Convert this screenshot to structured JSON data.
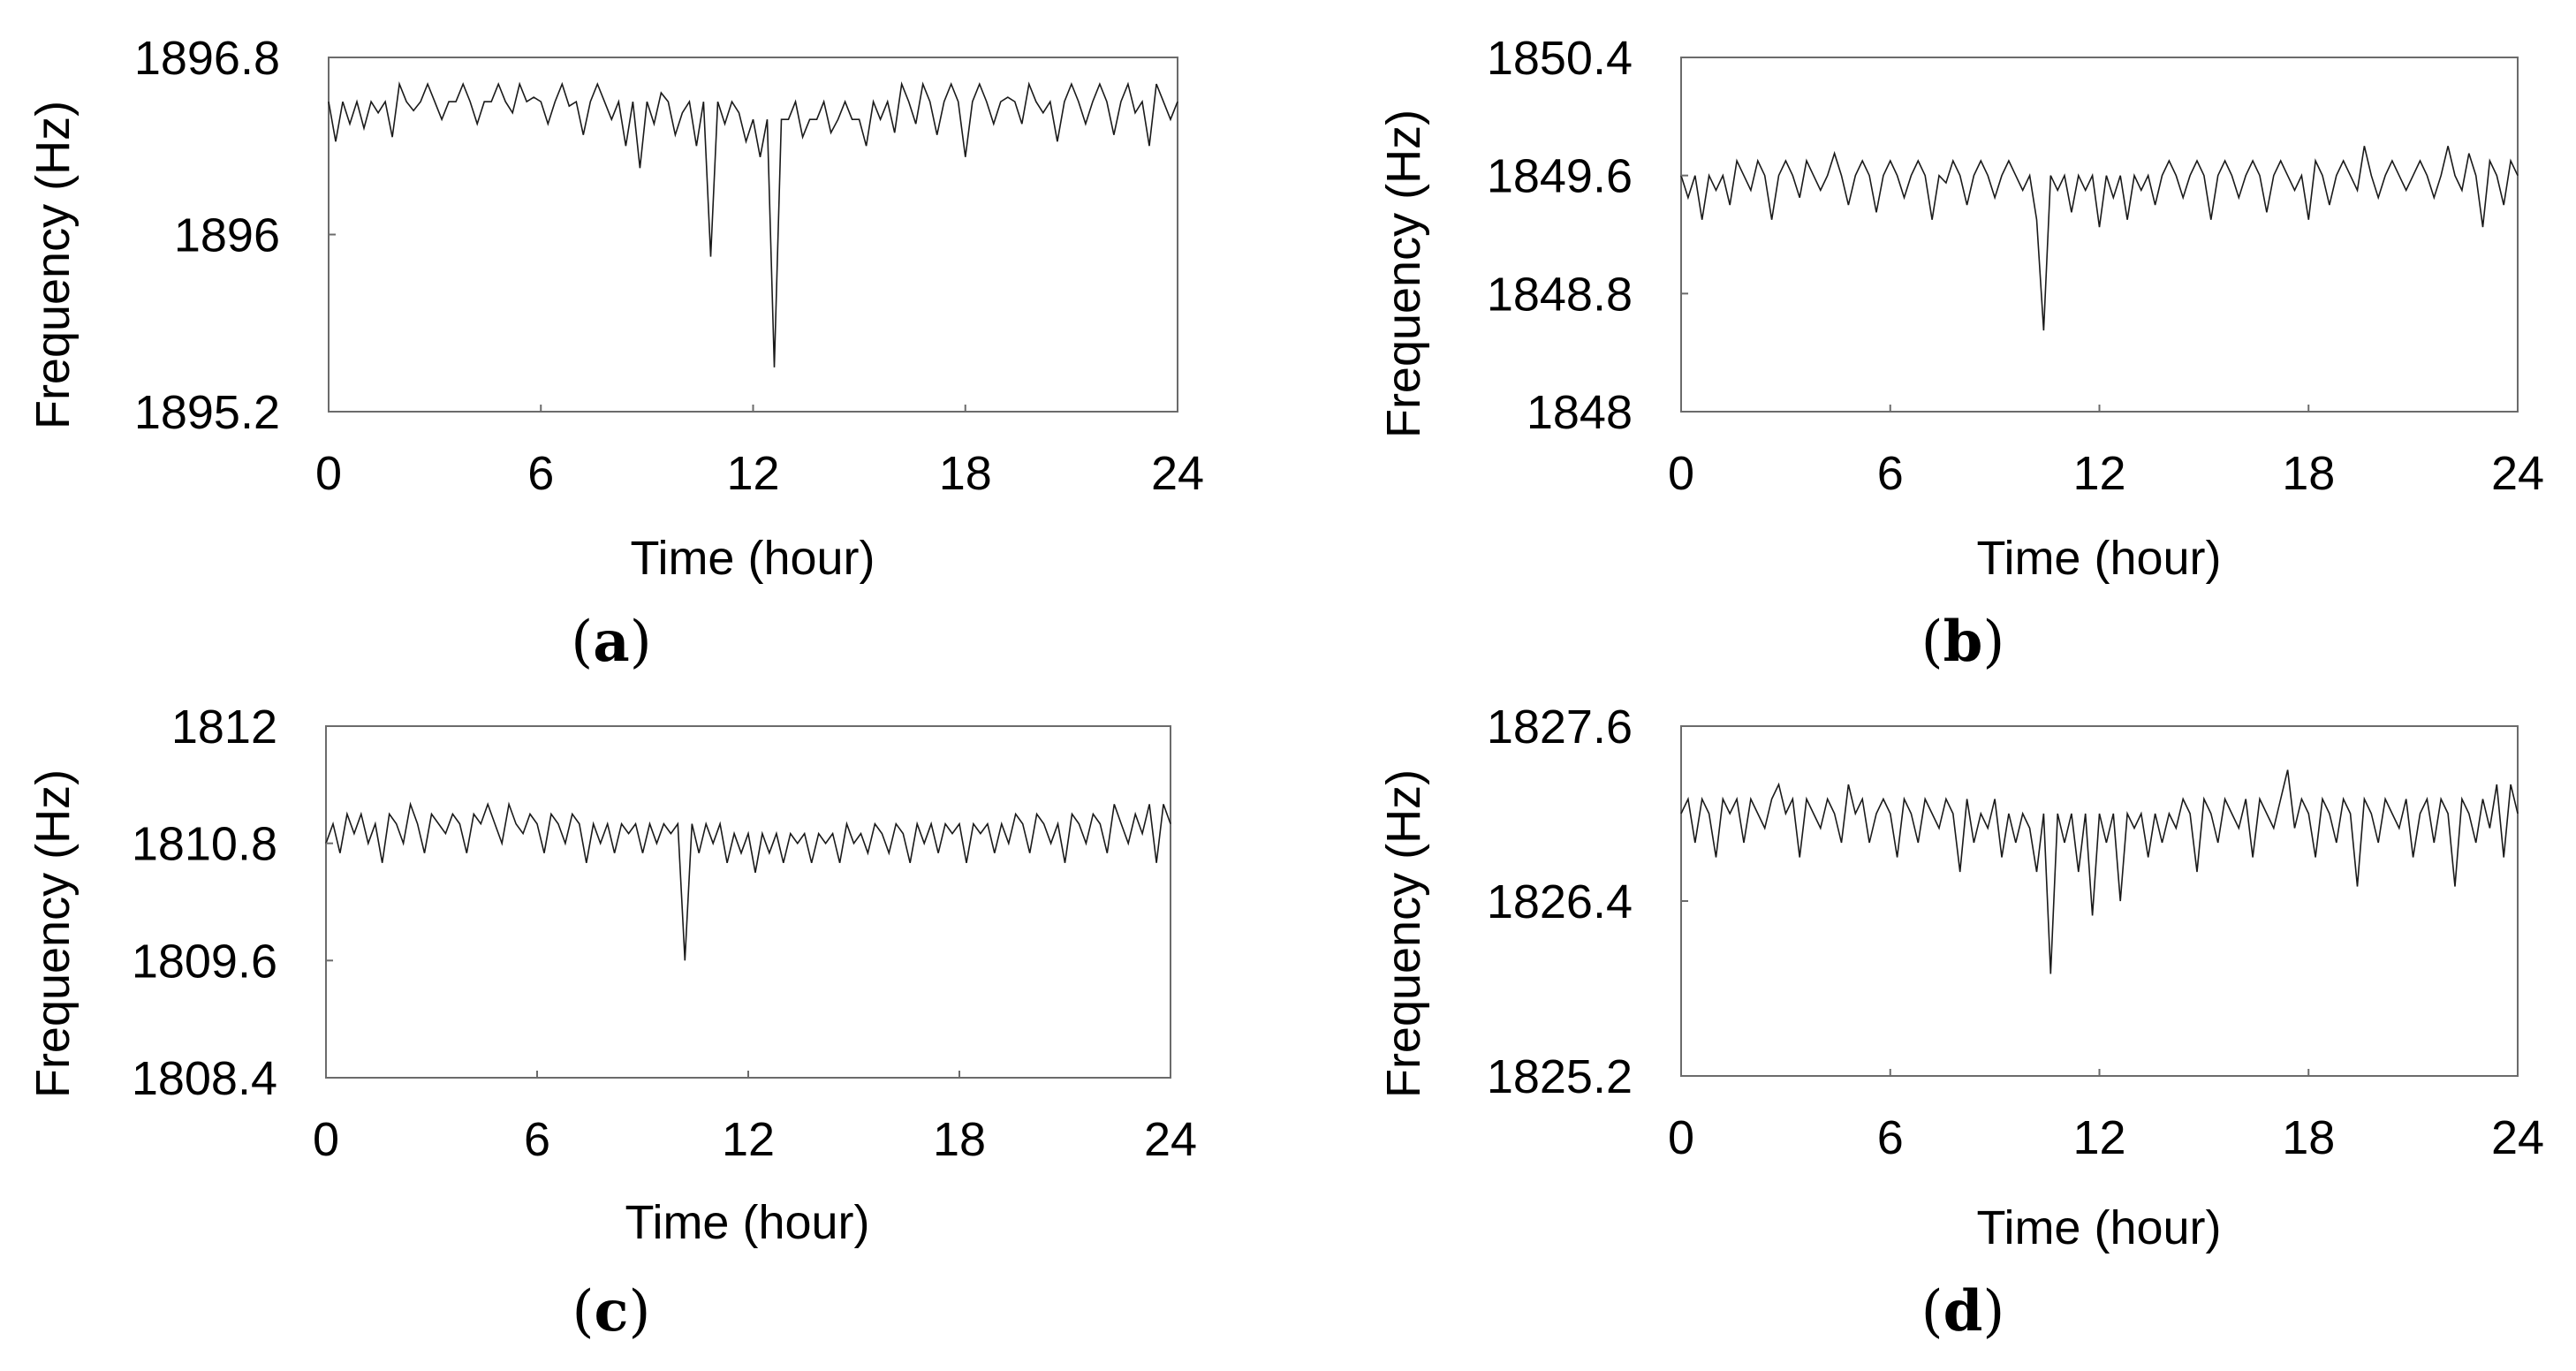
{
  "chart_data": [
    {
      "type": "line",
      "panel": "a",
      "xlabel": "Time (hour)",
      "ylabel": "Frequency (Hz)",
      "xlim": [
        0,
        24
      ],
      "ylim": [
        1895.2,
        1896.8
      ],
      "xticks": [
        0,
        6,
        12,
        18,
        24
      ],
      "yticks": [
        1895.2,
        1896,
        1896.8
      ],
      "ytick_labels": [
        "1895.2",
        "1896",
        "1896.8"
      ],
      "grid": false,
      "x": [
        0,
        0.2,
        0.4,
        0.6,
        0.8,
        1.0,
        1.2,
        1.4,
        1.6,
        1.8,
        2.0,
        2.2,
        2.4,
        2.6,
        2.8,
        3.0,
        3.2,
        3.4,
        3.6,
        3.8,
        4.0,
        4.2,
        4.4,
        4.6,
        4.8,
        5.0,
        5.2,
        5.4,
        5.6,
        5.8,
        6.0,
        6.2,
        6.4,
        6.6,
        6.8,
        7.0,
        7.2,
        7.4,
        7.6,
        7.8,
        8.0,
        8.2,
        8.4,
        8.6,
        8.8,
        9.0,
        9.2,
        9.4,
        9.6,
        9.8,
        10.0,
        10.2,
        10.4,
        10.6,
        10.8,
        11.0,
        11.2,
        11.4,
        11.6,
        11.8,
        12.0,
        12.2,
        12.4,
        12.6,
        12.8,
        13.0,
        13.2,
        13.4,
        13.6,
        13.8,
        14.0,
        14.2,
        14.4,
        14.6,
        14.8,
        15.0,
        15.2,
        15.4,
        15.6,
        15.8,
        16.0,
        16.2,
        16.4,
        16.6,
        16.8,
        17.0,
        17.2,
        17.4,
        17.6,
        17.8,
        18.0,
        18.2,
        18.4,
        18.6,
        18.8,
        19.0,
        19.2,
        19.4,
        19.6,
        19.8,
        20.0,
        20.2,
        20.4,
        20.6,
        20.8,
        21.0,
        21.2,
        21.4,
        21.6,
        21.8,
        22.0,
        22.2,
        22.4,
        22.6,
        22.8,
        23.0,
        23.2,
        23.4,
        23.6,
        23.8,
        24.0
      ],
      "y": [
        1896.6,
        1896.42,
        1896.6,
        1896.5,
        1896.6,
        1896.48,
        1896.6,
        1896.55,
        1896.6,
        1896.44,
        1896.68,
        1896.6,
        1896.56,
        1896.6,
        1896.68,
        1896.6,
        1896.52,
        1896.6,
        1896.6,
        1896.68,
        1896.6,
        1896.5,
        1896.6,
        1896.6,
        1896.68,
        1896.6,
        1896.55,
        1896.68,
        1896.6,
        1896.62,
        1896.6,
        1896.5,
        1896.6,
        1896.68,
        1896.58,
        1896.6,
        1896.45,
        1896.6,
        1896.68,
        1896.6,
        1896.52,
        1896.6,
        1896.4,
        1896.6,
        1896.3,
        1896.6,
        1896.5,
        1896.64,
        1896.6,
        1896.45,
        1896.55,
        1896.6,
        1896.4,
        1896.6,
        1895.9,
        1896.6,
        1896.5,
        1896.6,
        1896.55,
        1896.42,
        1896.52,
        1896.35,
        1896.52,
        1895.4,
        1896.52,
        1896.52,
        1896.6,
        1896.44,
        1896.52,
        1896.52,
        1896.6,
        1896.46,
        1896.52,
        1896.6,
        1896.52,
        1896.52,
        1896.4,
        1896.6,
        1896.52,
        1896.6,
        1896.46,
        1896.68,
        1896.6,
        1896.5,
        1896.68,
        1896.6,
        1896.45,
        1896.6,
        1896.68,
        1896.6,
        1896.35,
        1896.6,
        1896.68,
        1896.6,
        1896.5,
        1896.6,
        1896.62,
        1896.6,
        1896.5,
        1896.68,
        1896.6,
        1896.55,
        1896.6,
        1896.42,
        1896.6,
        1896.68,
        1896.6,
        1896.5,
        1896.6,
        1896.68,
        1896.6,
        1896.45,
        1896.6,
        1896.68,
        1896.55,
        1896.6,
        1896.4,
        1896.68,
        1896.6,
        1896.52,
        1896.6
      ]
    },
    {
      "type": "line",
      "panel": "b",
      "xlabel": "Time (hour)",
      "ylabel": "Frequency (Hz)",
      "xlim": [
        0,
        24
      ],
      "ylim": [
        1848,
        1850.4
      ],
      "xticks": [
        0,
        6,
        12,
        18,
        24
      ],
      "yticks": [
        1848,
        1848.8,
        1849.6,
        1850.4
      ],
      "ytick_labels": [
        "1848",
        "1848.8",
        "1849.6",
        "1850.4"
      ],
      "grid": false,
      "x": [
        0,
        0.2,
        0.4,
        0.6,
        0.8,
        1.0,
        1.2,
        1.4,
        1.6,
        1.8,
        2.0,
        2.2,
        2.4,
        2.6,
        2.8,
        3.0,
        3.2,
        3.4,
        3.6,
        3.8,
        4.0,
        4.2,
        4.4,
        4.6,
        4.8,
        5.0,
        5.2,
        5.4,
        5.6,
        5.8,
        6.0,
        6.2,
        6.4,
        6.6,
        6.8,
        7.0,
        7.2,
        7.4,
        7.6,
        7.8,
        8.0,
        8.2,
        8.4,
        8.6,
        8.8,
        9.0,
        9.2,
        9.4,
        9.6,
        9.8,
        10.0,
        10.2,
        10.4,
        10.6,
        10.8,
        11.0,
        11.2,
        11.4,
        11.6,
        11.8,
        12.0,
        12.2,
        12.4,
        12.6,
        12.8,
        13.0,
        13.2,
        13.4,
        13.6,
        13.8,
        14.0,
        14.2,
        14.4,
        14.6,
        14.8,
        15.0,
        15.2,
        15.4,
        15.6,
        15.8,
        16.0,
        16.2,
        16.4,
        16.6,
        16.8,
        17.0,
        17.2,
        17.4,
        17.6,
        17.8,
        18.0,
        18.2,
        18.4,
        18.6,
        18.8,
        19.0,
        19.2,
        19.4,
        19.6,
        19.8,
        20.0,
        20.2,
        20.4,
        20.6,
        20.8,
        21.0,
        21.2,
        21.4,
        21.6,
        21.8,
        22.0,
        22.2,
        22.4,
        22.6,
        22.8,
        23.0,
        23.2,
        23.4,
        23.6,
        23.8,
        24.0
      ],
      "y": [
        1849.6,
        1849.45,
        1849.6,
        1849.3,
        1849.6,
        1849.5,
        1849.6,
        1849.4,
        1849.7,
        1849.6,
        1849.5,
        1849.7,
        1849.6,
        1849.3,
        1849.6,
        1849.7,
        1849.6,
        1849.45,
        1849.7,
        1849.6,
        1849.5,
        1849.6,
        1849.75,
        1849.6,
        1849.4,
        1849.6,
        1849.7,
        1849.6,
        1849.35,
        1849.6,
        1849.7,
        1849.6,
        1849.45,
        1849.6,
        1849.7,
        1849.6,
        1849.3,
        1849.6,
        1849.55,
        1849.7,
        1849.6,
        1849.4,
        1849.6,
        1849.7,
        1849.6,
        1849.45,
        1849.6,
        1849.7,
        1849.6,
        1849.5,
        1849.6,
        1849.3,
        1848.55,
        1849.6,
        1849.5,
        1849.6,
        1849.35,
        1849.6,
        1849.5,
        1849.6,
        1849.25,
        1849.6,
        1849.45,
        1849.6,
        1849.3,
        1849.6,
        1849.5,
        1849.6,
        1849.4,
        1849.6,
        1849.7,
        1849.6,
        1849.45,
        1849.6,
        1849.7,
        1849.6,
        1849.3,
        1849.6,
        1849.7,
        1849.6,
        1849.45,
        1849.6,
        1849.7,
        1849.6,
        1849.35,
        1849.6,
        1849.7,
        1849.6,
        1849.5,
        1849.6,
        1849.3,
        1849.7,
        1849.6,
        1849.4,
        1849.6,
        1849.7,
        1849.6,
        1849.5,
        1849.8,
        1849.6,
        1849.45,
        1849.6,
        1849.7,
        1849.6,
        1849.5,
        1849.6,
        1849.7,
        1849.6,
        1849.45,
        1849.6,
        1849.8,
        1849.6,
        1849.5,
        1849.75,
        1849.6,
        1849.25,
        1849.7,
        1849.6,
        1849.4,
        1849.7,
        1849.6
      ]
    },
    {
      "type": "line",
      "panel": "c",
      "xlabel": "Time (hour)",
      "ylabel": "Frequency (Hz)",
      "xlim": [
        0,
        24
      ],
      "ylim": [
        1808.4,
        1812
      ],
      "xticks": [
        0,
        6,
        12,
        18,
        24
      ],
      "yticks": [
        1808.4,
        1809.6,
        1810.8,
        1812
      ],
      "ytick_labels": [
        "1808.4",
        "1809.6",
        "1810.8",
        "1812"
      ],
      "grid": false,
      "x": [
        0,
        0.2,
        0.4,
        0.6,
        0.8,
        1.0,
        1.2,
        1.4,
        1.6,
        1.8,
        2.0,
        2.2,
        2.4,
        2.6,
        2.8,
        3.0,
        3.2,
        3.4,
        3.6,
        3.8,
        4.0,
        4.2,
        4.4,
        4.6,
        4.8,
        5.0,
        5.2,
        5.4,
        5.6,
        5.8,
        6.0,
        6.2,
        6.4,
        6.6,
        6.8,
        7.0,
        7.2,
        7.4,
        7.6,
        7.8,
        8.0,
        8.2,
        8.4,
        8.6,
        8.8,
        9.0,
        9.2,
        9.4,
        9.6,
        9.8,
        10.0,
        10.2,
        10.4,
        10.6,
        10.8,
        11.0,
        11.2,
        11.4,
        11.6,
        11.8,
        12.0,
        12.2,
        12.4,
        12.6,
        12.8,
        13.0,
        13.2,
        13.4,
        13.6,
        13.8,
        14.0,
        14.2,
        14.4,
        14.6,
        14.8,
        15.0,
        15.2,
        15.4,
        15.6,
        15.8,
        16.0,
        16.2,
        16.4,
        16.6,
        16.8,
        17.0,
        17.2,
        17.4,
        17.6,
        17.8,
        18.0,
        18.2,
        18.4,
        18.6,
        18.8,
        19.0,
        19.2,
        19.4,
        19.6,
        19.8,
        20.0,
        20.2,
        20.4,
        20.6,
        20.8,
        21.0,
        21.2,
        21.4,
        21.6,
        21.8,
        22.0,
        22.2,
        22.4,
        22.6,
        22.8,
        23.0,
        23.2,
        23.4,
        23.6,
        23.8,
        24.0
      ],
      "y": [
        1810.8,
        1811.0,
        1810.7,
        1811.1,
        1810.9,
        1811.1,
        1810.8,
        1811.0,
        1810.6,
        1811.1,
        1811.0,
        1810.8,
        1811.2,
        1811.0,
        1810.7,
        1811.1,
        1811.0,
        1810.9,
        1811.1,
        1811.0,
        1810.7,
        1811.1,
        1811.0,
        1811.2,
        1811.0,
        1810.8,
        1811.2,
        1811.0,
        1810.9,
        1811.1,
        1811.0,
        1810.7,
        1811.1,
        1811.0,
        1810.8,
        1811.1,
        1811.0,
        1810.6,
        1811.0,
        1810.8,
        1811.0,
        1810.7,
        1811.0,
        1810.9,
        1811.0,
        1810.7,
        1811.0,
        1810.8,
        1811.0,
        1810.9,
        1811.0,
        1809.6,
        1811.0,
        1810.7,
        1811.0,
        1810.8,
        1811.0,
        1810.6,
        1810.9,
        1810.7,
        1810.9,
        1810.5,
        1810.9,
        1810.7,
        1810.9,
        1810.6,
        1810.9,
        1810.8,
        1810.9,
        1810.6,
        1810.9,
        1810.8,
        1810.9,
        1810.6,
        1811.0,
        1810.8,
        1810.9,
        1810.7,
        1811.0,
        1810.9,
        1810.7,
        1811.0,
        1810.9,
        1810.6,
        1811.0,
        1810.8,
        1811.0,
        1810.7,
        1811.0,
        1810.9,
        1811.0,
        1810.6,
        1811.0,
        1810.9,
        1811.0,
        1810.7,
        1811.0,
        1810.8,
        1811.1,
        1811.0,
        1810.7,
        1811.1,
        1811.0,
        1810.8,
        1811.0,
        1810.6,
        1811.1,
        1811.0,
        1810.8,
        1811.1,
        1811.0,
        1810.7,
        1811.2,
        1811.0,
        1810.8,
        1811.1,
        1810.9,
        1811.2,
        1810.6,
        1811.2,
        1811.0
      ]
    },
    {
      "type": "line",
      "panel": "d",
      "xlabel": "Time (hour)",
      "ylabel": "Frequency (Hz)",
      "xlim": [
        0,
        24
      ],
      "ylim": [
        1825.2,
        1827.6
      ],
      "xticks": [
        0,
        6,
        12,
        18,
        24
      ],
      "yticks": [
        1825.2,
        1826.4,
        1827.6
      ],
      "ytick_labels": [
        "1825.2",
        "1826.4",
        "1827.6"
      ],
      "grid": false,
      "x": [
        0,
        0.2,
        0.4,
        0.6,
        0.8,
        1.0,
        1.2,
        1.4,
        1.6,
        1.8,
        2.0,
        2.2,
        2.4,
        2.6,
        2.8,
        3.0,
        3.2,
        3.4,
        3.6,
        3.8,
        4.0,
        4.2,
        4.4,
        4.6,
        4.8,
        5.0,
        5.2,
        5.4,
        5.6,
        5.8,
        6.0,
        6.2,
        6.4,
        6.6,
        6.8,
        7.0,
        7.2,
        7.4,
        7.6,
        7.8,
        8.0,
        8.2,
        8.4,
        8.6,
        8.8,
        9.0,
        9.2,
        9.4,
        9.6,
        9.8,
        10.0,
        10.2,
        10.4,
        10.6,
        10.8,
        11.0,
        11.2,
        11.4,
        11.6,
        11.8,
        12.0,
        12.2,
        12.4,
        12.6,
        12.8,
        13.0,
        13.2,
        13.4,
        13.6,
        13.8,
        14.0,
        14.2,
        14.4,
        14.6,
        14.8,
        15.0,
        15.2,
        15.4,
        15.6,
        15.8,
        16.0,
        16.2,
        16.4,
        16.6,
        16.8,
        17.0,
        17.2,
        17.4,
        17.6,
        17.8,
        18.0,
        18.2,
        18.4,
        18.6,
        18.8,
        19.0,
        19.2,
        19.4,
        19.6,
        19.8,
        20.0,
        20.2,
        20.4,
        20.6,
        20.8,
        21.0,
        21.2,
        21.4,
        21.6,
        21.8,
        22.0,
        22.2,
        22.4,
        22.6,
        22.8,
        23.0,
        23.2,
        23.4,
        23.6,
        23.8,
        24.0
      ],
      "y": [
        1827.0,
        1827.1,
        1826.8,
        1827.1,
        1827.0,
        1826.7,
        1827.1,
        1827.0,
        1827.1,
        1826.8,
        1827.1,
        1827.0,
        1826.9,
        1827.1,
        1827.2,
        1827.0,
        1827.1,
        1826.7,
        1827.1,
        1827.0,
        1826.9,
        1827.1,
        1827.0,
        1826.8,
        1827.2,
        1827.0,
        1827.1,
        1826.8,
        1827.0,
        1827.1,
        1827.0,
        1826.7,
        1827.1,
        1827.0,
        1826.8,
        1827.1,
        1827.0,
        1826.9,
        1827.1,
        1827.0,
        1826.6,
        1827.1,
        1826.8,
        1827.0,
        1826.9,
        1827.1,
        1826.7,
        1827.0,
        1826.8,
        1827.0,
        1826.9,
        1826.6,
        1827.0,
        1825.9,
        1827.0,
        1826.8,
        1827.0,
        1826.6,
        1827.0,
        1826.3,
        1827.0,
        1826.8,
        1827.0,
        1826.4,
        1827.0,
        1826.9,
        1827.0,
        1826.7,
        1827.0,
        1826.8,
        1827.0,
        1826.9,
        1827.1,
        1827.0,
        1826.6,
        1827.1,
        1827.0,
        1826.8,
        1827.1,
        1827.0,
        1826.9,
        1827.1,
        1826.7,
        1827.1,
        1827.0,
        1826.9,
        1827.1,
        1827.3,
        1826.9,
        1827.1,
        1827.0,
        1826.7,
        1827.1,
        1827.0,
        1826.8,
        1827.1,
        1827.0,
        1826.5,
        1827.1,
        1827.0,
        1826.8,
        1827.1,
        1827.0,
        1826.9,
        1827.1,
        1826.7,
        1827.0,
        1827.1,
        1826.8,
        1827.1,
        1827.0,
        1826.5,
        1827.1,
        1827.0,
        1826.8,
        1827.1,
        1826.9,
        1827.2,
        1826.7,
        1827.2,
        1827.0
      ]
    }
  ],
  "panel_labels": [
    {
      "open": "(",
      "letter": "a",
      "close": ")"
    },
    {
      "open": "(",
      "letter": "b",
      "close": ")"
    },
    {
      "open": "(",
      "letter": "c",
      "close": ")"
    },
    {
      "open": "(",
      "letter": "d",
      "close": ")"
    }
  ]
}
